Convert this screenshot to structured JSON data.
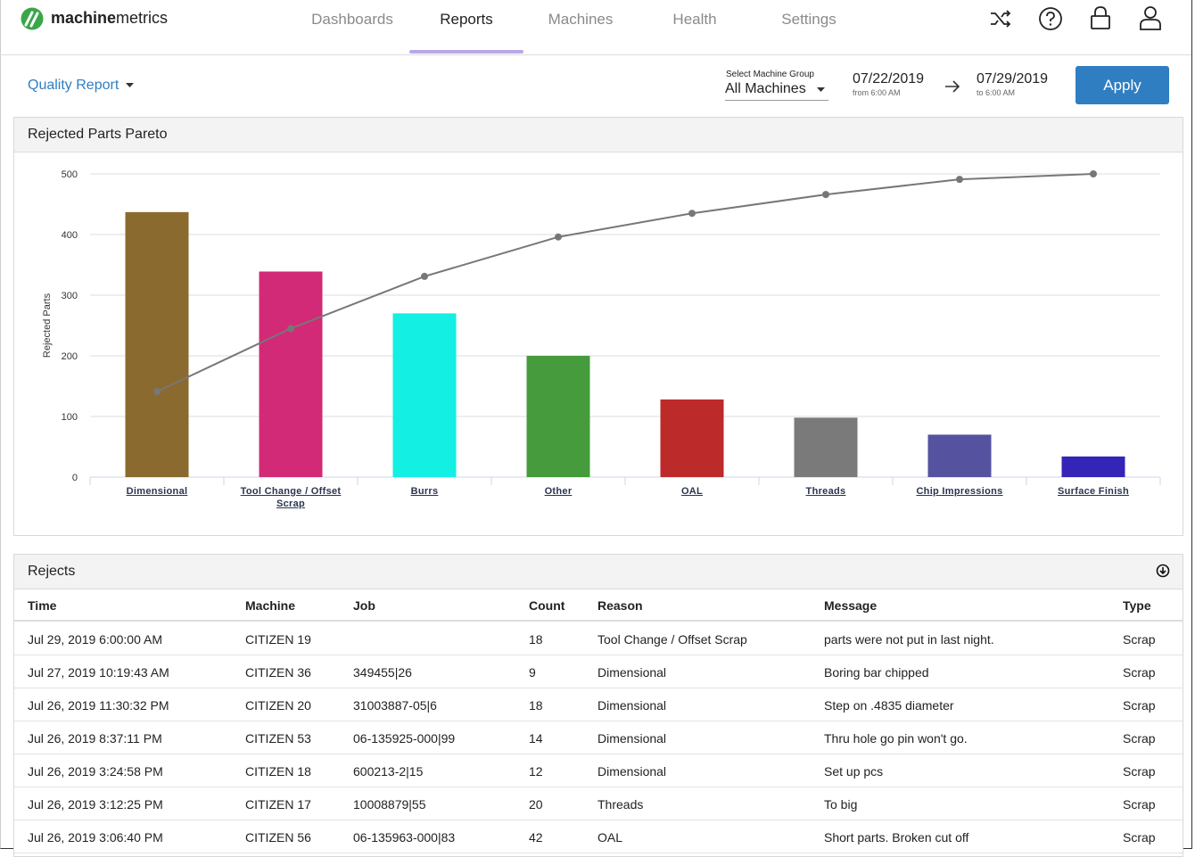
{
  "header": {
    "logo_bold": "machine",
    "logo_light": "metrics",
    "nav": [
      "Dashboards",
      "Reports",
      "Machines",
      "Health",
      "Settings"
    ]
  },
  "toolbar": {
    "report": "Quality Report",
    "group_label": "Select Machine Group",
    "group": "All Machines",
    "from_date": "07/22/2019",
    "from_time": "from 6:00 AM",
    "to_date": "07/29/2019",
    "to_time": "to 6:00 AM",
    "apply": "Apply"
  },
  "chart_data": {
    "type": "pareto",
    "title": "Rejected Parts Pareto",
    "y_label": "Rejected Parts",
    "categories": [
      "Dimensional",
      "Tool Change / Offset Scrap",
      "Burrs",
      "Other",
      "OAL",
      "Threads",
      "Chip Impressions",
      "Surface Finish"
    ],
    "series": [
      {
        "type": "bar",
        "values": [
          437,
          339,
          270,
          200,
          128,
          98,
          70,
          34
        ],
        "colors": [
          "#8b6a2f",
          "#d22a76",
          "#13efe2",
          "#469c3d",
          "#bd2a2a",
          "#7a7a7a",
          "#5553a0",
          "#3524b8"
        ]
      },
      {
        "type": "line",
        "color": "#777777",
        "values": [
          141,
          245,
          331,
          396,
          435,
          466,
          491,
          500
        ]
      }
    ],
    "ylim": [
      0,
      500
    ],
    "yticks": [
      0,
      100,
      200,
      300,
      400,
      500
    ],
    "grid": true
  },
  "table": {
    "title": "Rejects",
    "columns": [
      "Time",
      "Machine",
      "Job",
      "Count",
      "Reason",
      "Message",
      "Type"
    ],
    "rows": [
      [
        "Jul 29, 2019 6:00:00 AM",
        "CITIZEN 19",
        null,
        18,
        "Tool Change / Offset Scrap",
        "parts were not put in last night.",
        "Scrap"
      ],
      [
        "Jul 27, 2019 10:19:43 AM",
        "CITIZEN 36",
        "349455|26",
        9,
        "Dimensional",
        "Boring bar chipped",
        "Scrap"
      ],
      [
        "Jul 26, 2019 11:30:32 PM",
        "CITIZEN 20",
        "31003887-05|6",
        18,
        "Dimensional",
        "Step on .4835 diameter",
        "Scrap"
      ],
      [
        "Jul 26, 2019 8:37:11 PM",
        "CITIZEN 53",
        "06-135925-000|99",
        14,
        "Dimensional",
        "Thru hole go pin won't go.",
        "Scrap"
      ],
      [
        "Jul 26, 2019 3:24:58 PM",
        "CITIZEN 18",
        "600213-2|15",
        12,
        "Dimensional",
        "Set up pcs",
        "Scrap"
      ],
      [
        "Jul 26, 2019 3:12:25 PM",
        "CITIZEN 17",
        "10008879|55",
        20,
        "Threads",
        "To big",
        "Scrap"
      ],
      [
        "Jul 26, 2019 3:06:40 PM",
        "CITIZEN 56",
        "06-135963-000|83",
        42,
        "OAL",
        "Short parts. Broken cut off",
        "Scrap"
      ]
    ]
  }
}
